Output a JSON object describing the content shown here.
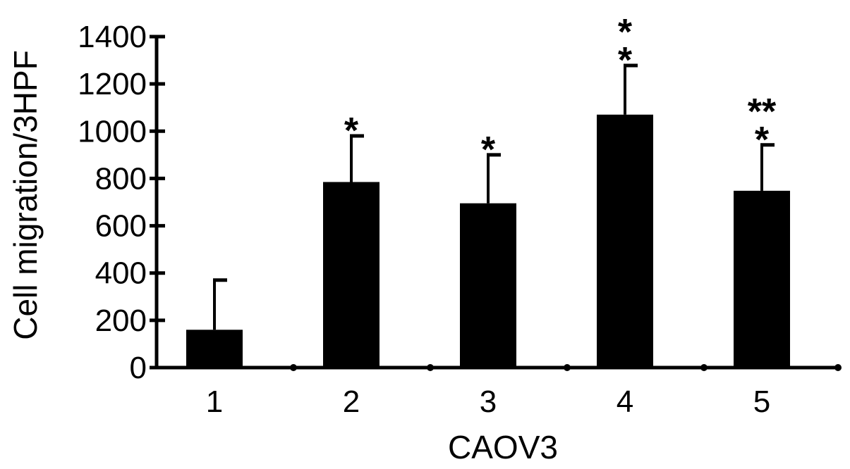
{
  "chart_data": {
    "type": "bar",
    "categories": [
      "1",
      "2",
      "3",
      "4",
      "5"
    ],
    "values": [
      160,
      785,
      695,
      1070,
      748
    ],
    "error_upper": [
      370,
      980,
      900,
      1278,
      942
    ],
    "significance": [
      "",
      "*",
      "*",
      "**",
      "***"
    ],
    "title": "",
    "xlabel": "CAOV3",
    "ylabel": "Cell migration/3HPF",
    "ylim": [
      0,
      1400
    ],
    "yticks": [
      "0",
      "200",
      "400",
      "600",
      "800",
      "1000",
      "1200",
      "1400"
    ],
    "grid": false,
    "legend": "none",
    "bar_color": "#000000"
  }
}
